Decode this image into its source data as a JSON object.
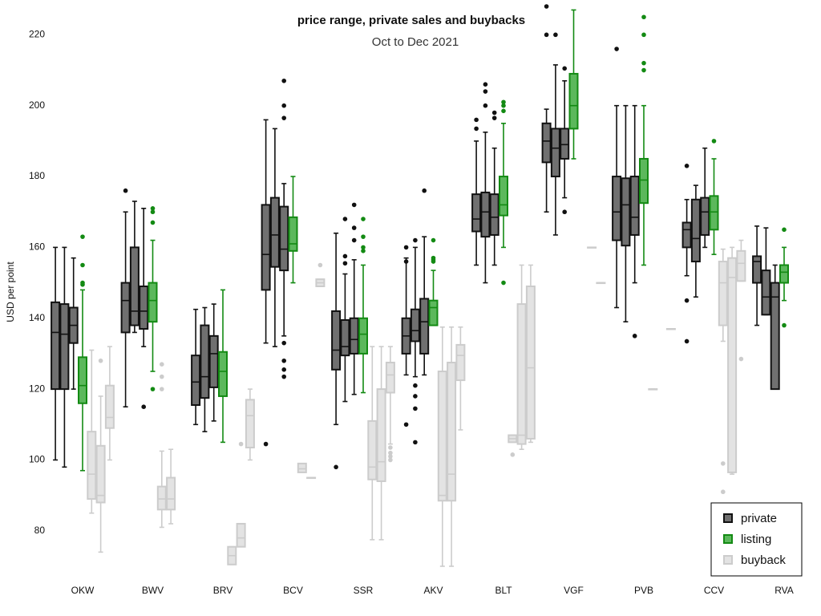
{
  "chart_data": {
    "type": "box",
    "title": "price range, private sales and buybacks",
    "subtitle": "Oct to Dec 2021",
    "y_label": "USD per point",
    "categories": [
      "OKW",
      "BWV",
      "BRV",
      "BCV",
      "SSR",
      "AKV",
      "BLT",
      "VGF",
      "PVB",
      "CCV",
      "RVA"
    ],
    "ylim": [
      70,
      228
    ],
    "yticks": [
      80,
      100,
      120,
      140,
      160,
      180,
      200,
      220
    ],
    "grid": false,
    "legend": "lower right",
    "series": [
      {
        "name": "private",
        "color": "#707070",
        "edgecolor": "#111111",
        "values": [
          [
            {
              "low": 100,
              "q1": 120,
              "median": 136,
              "q3": 144.5,
              "high": 160
            },
            {
              "low": 98,
              "q1": 120,
              "median": 135.5,
              "q3": 144,
              "high": 160
            },
            {
              "low": 120,
              "q1": 133,
              "median": 138,
              "q3": 143,
              "high": 157
            }
          ],
          [
            {
              "low": 115,
              "q1": 136,
              "median": 145,
              "q3": 150,
              "high": 170,
              "outliers": [
                176
              ]
            },
            {
              "low": 136,
              "q1": 138,
              "median": 142,
              "q3": 160,
              "high": 173
            },
            {
              "low": 132,
              "q1": 137,
              "median": 142,
              "q3": 149,
              "high": 171,
              "outliers": [
                115
              ]
            }
          ],
          [
            {
              "low": 110,
              "q1": 115.5,
              "median": 122,
              "q3": 129.5,
              "high": 142.5
            },
            {
              "low": 108,
              "q1": 117.5,
              "median": 123.5,
              "q3": 138,
              "high": 143
            },
            {
              "low": 111,
              "q1": 120.5,
              "median": 130,
              "q3": 135,
              "high": 144
            }
          ],
          [
            {
              "low": 133,
              "q1": 148,
              "median": 158,
              "q3": 172,
              "high": 196,
              "outliers": [
                104.5
              ]
            },
            {
              "low": 132,
              "q1": 154.5,
              "median": 163.5,
              "q3": 174,
              "high": 193.5
            },
            {
              "low": 135,
              "q1": 153.5,
              "median": 159.5,
              "q3": 171.5,
              "high": 178,
              "outliers": [
                207,
                200,
                196.5,
                133,
                128,
                125.5,
                123.5
              ]
            }
          ],
          [
            {
              "low": 110,
              "q1": 125.5,
              "median": 131,
              "q3": 142,
              "high": 164,
              "outliers": [
                98
              ]
            },
            {
              "low": 116.5,
              "q1": 129.5,
              "median": 132,
              "q3": 139.5,
              "high": 152.5,
              "outliers": [
                168,
                157.5,
                155.5
              ]
            },
            {
              "low": 118.5,
              "q1": 130,
              "median": 134,
              "q3": 140,
              "high": 156.5,
              "outliers": [
                172,
                165.5,
                162
              ]
            }
          ],
          [
            {
              "low": 124,
              "q1": 130,
              "median": 135,
              "q3": 140,
              "high": 157,
              "outliers": [
                160,
                156,
                110
              ]
            },
            {
              "low": 123.5,
              "q1": 133.5,
              "median": 136.5,
              "q3": 142.5,
              "high": 160,
              "outliers": [
                162,
                121,
                118,
                114.5,
                105
              ]
            },
            {
              "low": 124,
              "q1": 130,
              "median": 139,
              "q3": 145.5,
              "high": 163,
              "outliers": [
                176
              ]
            }
          ],
          [
            {
              "low": 155,
              "q1": 164.5,
              "median": 168,
              "q3": 175,
              "high": 190,
              "outliers": [
                196,
                193.5
              ]
            },
            {
              "low": 150,
              "q1": 163,
              "median": 170,
              "q3": 175.5,
              "high": 192.5,
              "outliers": [
                206,
                204,
                200
              ]
            },
            {
              "low": 155,
              "q1": 163.5,
              "median": 168.5,
              "q3": 175,
              "high": 188,
              "outliers": [
                198,
                196.5
              ]
            }
          ],
          [
            {
              "low": 170,
              "q1": 184,
              "median": 190,
              "q3": 195,
              "high": 199,
              "outliers": [
                228,
                220
              ]
            },
            {
              "low": 163.5,
              "q1": 180,
              "median": 188,
              "q3": 193.5,
              "high": 211.5,
              "outliers": [
                220
              ]
            },
            {
              "low": 174,
              "q1": 185,
              "median": 189,
              "q3": 193.5,
              "high": 207,
              "outliers": [
                210.5,
                170
              ]
            }
          ],
          [
            {
              "low": 143,
              "q1": 162,
              "median": 170,
              "q3": 180,
              "high": 200,
              "outliers": [
                216
              ]
            },
            {
              "low": 139,
              "q1": 160.5,
              "median": 172,
              "q3": 179.5,
              "high": 200
            },
            {
              "low": 150,
              "q1": 163.5,
              "median": 168.5,
              "q3": 180,
              "high": 200,
              "outliers": [
                135
              ]
            }
          ],
          [
            {
              "low": 152,
              "q1": 160,
              "median": 165,
              "q3": 167,
              "high": 173.5,
              "outliers": [
                183,
                145,
                133.5
              ]
            },
            {
              "low": 146,
              "q1": 156,
              "median": 162.5,
              "q3": 173.5,
              "high": 177.5
            },
            {
              "low": 160,
              "q1": 163.5,
              "median": 170,
              "q3": 174,
              "high": 188
            }
          ],
          [
            {
              "low": 138,
              "q1": 150,
              "median": 156,
              "q3": 157.5,
              "high": 166
            },
            {
              "low": 141,
              "q1": 141,
              "median": 146,
              "q3": 153.5,
              "high": 165.5
            },
            {
              "low": 120,
              "q1": 120,
              "median": 146,
              "q3": 150,
              "high": 155
            }
          ]
        ]
      },
      {
        "name": "listing",
        "color": "#5cb85c",
        "edgecolor": "#138a13",
        "values": [
          [
            {
              "low": 97,
              "q1": 116,
              "median": 121,
              "q3": 129,
              "high": 148,
              "outliers": [
                163,
                155,
                150,
                149.5
              ]
            }
          ],
          [
            {
              "low": 125,
              "q1": 139,
              "median": 145,
              "q3": 150,
              "high": 162,
              "outliers": [
                171,
                170,
                167,
                120
              ]
            }
          ],
          [
            {
              "low": 105,
              "q1": 118,
              "median": 125,
              "q3": 130.5,
              "high": 148
            }
          ],
          [
            {
              "low": 150,
              "q1": 159,
              "median": 161,
              "q3": 168.5,
              "high": 180
            }
          ],
          [
            {
              "low": 119,
              "q1": 130,
              "median": 135.5,
              "q3": 140,
              "high": 155,
              "outliers": [
                168,
                163,
                160,
                159
              ]
            }
          ],
          [
            {
              "low": 138,
              "q1": 138,
              "median": 143,
              "q3": 145,
              "high": 153.5,
              "outliers": [
                162,
                157,
                156.5,
                156
              ]
            }
          ],
          [
            {
              "low": 160,
              "q1": 169,
              "median": 172,
              "q3": 180,
              "high": 195,
              "outliers": [
                201,
                200,
                198.5,
                150
              ]
            }
          ],
          [
            {
              "low": 185,
              "q1": 193.5,
              "median": 200,
              "q3": 209,
              "high": 227
            }
          ],
          [
            {
              "low": 155,
              "q1": 172.5,
              "median": 179,
              "q3": 185,
              "high": 200,
              "outliers": [
                225,
                220,
                212,
                210
              ]
            }
          ],
          [
            {
              "low": 158,
              "q1": 165,
              "median": 170,
              "q3": 174.5,
              "high": 185,
              "outliers": [
                190
              ]
            }
          ],
          [
            {
              "low": 145,
              "q1": 150,
              "median": 153,
              "q3": 155,
              "high": 160,
              "outliers": [
                165,
                138
              ]
            }
          ]
        ]
      },
      {
        "name": "buyback",
        "color": "#e3e3e3",
        "edgecolor": "#cccccc",
        "values": [
          [
            {
              "low": 85,
              "q1": 89,
              "median": 96,
              "q3": 108,
              "high": 131
            },
            {
              "low": 74,
              "q1": 88,
              "median": 90,
              "q3": 104,
              "high": 118,
              "outliers": [
                128
              ]
            },
            {
              "low": 100,
              "q1": 109,
              "median": 112,
              "q3": 121,
              "high": 132
            }
          ],
          [
            {
              "low": 81,
              "q1": 86,
              "median": 89,
              "q3": 92.5,
              "high": 102.5,
              "outliers": [
                127,
                123.5,
                120
              ]
            },
            {
              "low": 82,
              "q1": 86,
              "median": 89,
              "q3": 95,
              "high": 103
            },
            null
          ],
          [
            {
              "low": 70.5,
              "q1": 70.5,
              "median": 73,
              "q3": 75.5,
              "high": 75.5
            },
            {
              "low": 75.5,
              "q1": 75.5,
              "median": 78,
              "q3": 82,
              "high": 82,
              "outliers": [
                104.5
              ]
            },
            {
              "low": 100,
              "q1": 103.5,
              "median": 112.5,
              "q3": 117,
              "high": 120
            }
          ],
          [
            {
              "low": 96.5,
              "q1": 96.5,
              "median": 97.5,
              "q3": 99,
              "high": 99
            },
            {
              "low": 95,
              "q1": 95,
              "median": 95,
              "q3": 95,
              "high": 95
            },
            {
              "low": 149,
              "q1": 149,
              "median": 150,
              "q3": 151,
              "high": 151,
              "outliers": [
                155
              ]
            }
          ],
          [
            {
              "low": 77.5,
              "q1": 94.5,
              "median": 98,
              "q3": 111,
              "high": 132
            },
            {
              "low": 77.5,
              "q1": 94,
              "median": 99.5,
              "q3": 120,
              "high": 132
            },
            {
              "low": 104.5,
              "q1": 119,
              "median": 124,
              "q3": 127.5,
              "high": 132,
              "outliers": [
                103.5,
                102,
                101,
                100
              ]
            }
          ],
          [
            {
              "low": 70,
              "q1": 88.5,
              "median": 90,
              "q3": 125,
              "high": 137.5
            },
            {
              "low": 70,
              "q1": 88.5,
              "median": 96,
              "q3": 127.5,
              "high": 137.5
            },
            {
              "low": 108.5,
              "q1": 122.5,
              "median": 129.5,
              "q3": 132.5,
              "high": 137.5
            }
          ],
          [
            {
              "low": 105,
              "q1": 105,
              "median": 106,
              "q3": 107,
              "high": 107,
              "outliers": [
                101.5
              ]
            },
            {
              "low": 103,
              "q1": 104.5,
              "median": 107,
              "q3": 144,
              "high": 155
            },
            {
              "low": 105,
              "q1": 106,
              "median": 126,
              "q3": 149,
              "high": 155
            }
          ],
          [
            null,
            {
              "low": 160,
              "q1": 160,
              "median": 160,
              "q3": 160,
              "high": 160
            },
            {
              "low": 150,
              "q1": 150,
              "median": 150,
              "q3": 150,
              "high": 150
            }
          ],
          [
            {
              "low": 120,
              "q1": 120,
              "median": 120,
              "q3": 120,
              "high": 120
            },
            null,
            {
              "low": 137,
              "q1": 137,
              "median": 137,
              "q3": 137,
              "high": 137
            }
          ],
          [
            {
              "low": 133.5,
              "q1": 138,
              "median": 150,
              "q3": 156,
              "high": 159.5,
              "outliers": [
                99,
                91
              ]
            },
            {
              "low": 96,
              "q1": 96.5,
              "median": 151.5,
              "q3": 157,
              "high": 160
            },
            {
              "low": 150.5,
              "q1": 150.5,
              "median": 155.5,
              "q3": 159,
              "high": 162,
              "outliers": [
                128.5
              ]
            }
          ],
          [
            null,
            null,
            null
          ]
        ]
      }
    ]
  }
}
